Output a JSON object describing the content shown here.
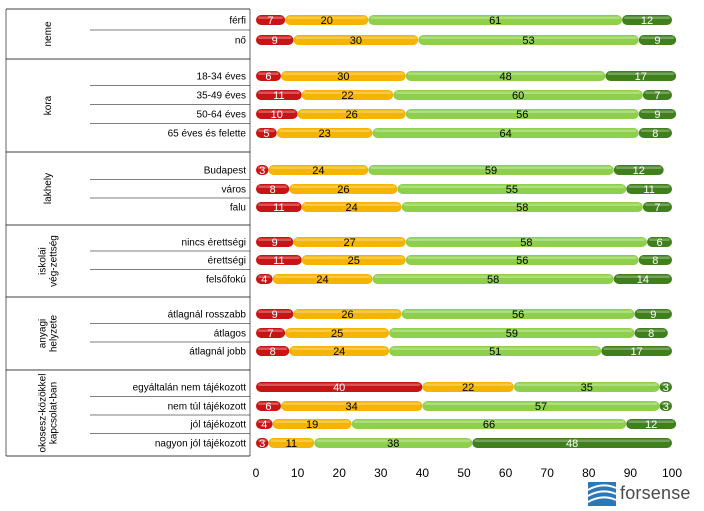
{
  "chart_data": {
    "type": "bar",
    "orientation": "horizontal",
    "stacked": true,
    "xlim": [
      0,
      100
    ],
    "x_ticks": [
      "0",
      "10",
      "20",
      "30",
      "40",
      "50",
      "60",
      "70",
      "80",
      "90",
      "100"
    ],
    "series_colors": [
      "#c81414",
      "#f5b400",
      "#8ed04c",
      "#3f7f1c"
    ],
    "groups": [
      {
        "label": "neme",
        "rows": [
          {
            "label": "férfi",
            "values": [
              7,
              20,
              61,
              12
            ]
          },
          {
            "label": "nő",
            "values": [
              9,
              30,
              53,
              9
            ]
          }
        ]
      },
      {
        "label": "kora",
        "rows": [
          {
            "label": "18-34 éves",
            "values": [
              6,
              30,
              48,
              17
            ]
          },
          {
            "label": "35-49 éves",
            "values": [
              11,
              22,
              60,
              7
            ]
          },
          {
            "label": "50-64 éves",
            "values": [
              10,
              26,
              56,
              9
            ]
          },
          {
            "label": "65 éves és felette",
            "values": [
              5,
              23,
              64,
              8
            ]
          }
        ]
      },
      {
        "label": "lakhely",
        "rows": [
          {
            "label": "Budapest",
            "values": [
              3,
              24,
              59,
              12
            ]
          },
          {
            "label": "város",
            "values": [
              8,
              26,
              55,
              11
            ]
          },
          {
            "label": "falu",
            "values": [
              11,
              24,
              58,
              7
            ]
          }
        ]
      },
      {
        "label": "iskolai vég-zettség",
        "rows": [
          {
            "label": "nincs érettségi",
            "values": [
              9,
              27,
              58,
              6
            ]
          },
          {
            "label": "érettségi",
            "values": [
              11,
              25,
              56,
              8
            ]
          },
          {
            "label": "felsőfokú",
            "values": [
              4,
              24,
              58,
              14
            ]
          }
        ]
      },
      {
        "label": "anyagi helyzete",
        "rows": [
          {
            "label": "átlagnál rosszabb",
            "values": [
              9,
              26,
              56,
              9
            ]
          },
          {
            "label": "átlagos",
            "values": [
              7,
              25,
              59,
              8
            ]
          },
          {
            "label": "átlagnál jobb",
            "values": [
              8,
              24,
              51,
              17
            ]
          }
        ]
      },
      {
        "label": "okosesz-közökkel kapcsolat-ban",
        "rows": [
          {
            "label": "egyáltalán nem tájékozott",
            "values": [
              40,
              22,
              35,
              3
            ]
          },
          {
            "label": "nem túl tájékozott",
            "values": [
              6,
              34,
              57,
              3
            ]
          },
          {
            "label": "jól tájékozott",
            "values": [
              4,
              19,
              66,
              12
            ]
          },
          {
            "label": "nagyon jól tájékozott",
            "values": [
              3,
              11,
              38,
              48
            ]
          }
        ]
      }
    ]
  },
  "logo": {
    "text": "forsense"
  }
}
